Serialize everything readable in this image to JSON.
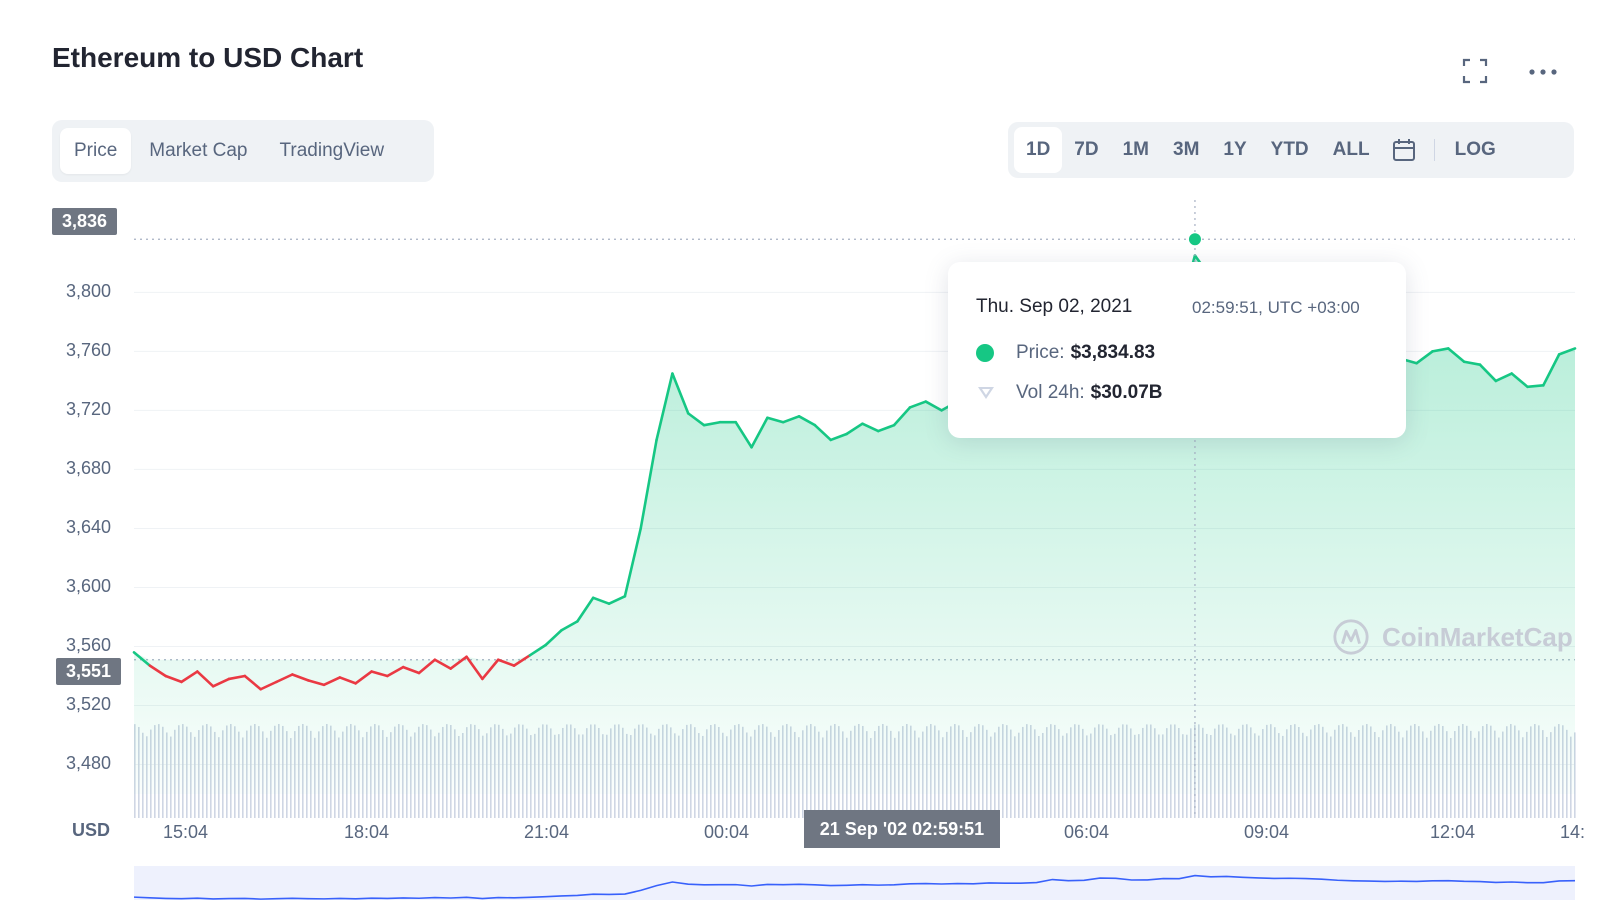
{
  "header": {
    "title": "Ethereum to USD Chart"
  },
  "icons": {
    "expand": "expand-icon",
    "more": "more-icon",
    "calendar": "calendar-icon"
  },
  "tabs": [
    {
      "label": "Price",
      "active": true
    },
    {
      "label": "Market Cap",
      "active": false
    },
    {
      "label": "TradingView",
      "active": false
    }
  ],
  "ranges": [
    "1D",
    "7D",
    "1M",
    "3M",
    "1Y",
    "YTD",
    "ALL"
  ],
  "active_range": "1D",
  "log_label": "LOG",
  "tooltip": {
    "date": "Thu. Sep 02, 2021",
    "time": "02:59:51, UTC +03:00",
    "price_label": "Price:",
    "price_value": "$3,834.83",
    "vol_label": "Vol 24h:",
    "vol_value": "$30.07B"
  },
  "price_tags": {
    "high": "3,836",
    "low": "3,551"
  },
  "cursor_time": "21 Sep '02 02:59:51",
  "currency_label": "USD",
  "watermark": "CoinMarketCap",
  "colors": {
    "up": "#16c784",
    "down": "#ea3943",
    "accent": "#3861fb",
    "tag": "#6f7682"
  },
  "chart_data": {
    "type": "area",
    "y_ticks": [
      "3,800",
      "3,760",
      "3,720",
      "3,680",
      "3,640",
      "3,600",
      "3,560",
      "3,520",
      "3,480"
    ],
    "x_ticks": [
      "15:04",
      "18:04",
      "21:04",
      "00:04",
      "06:04",
      "09:04",
      "12:04",
      "14:"
    ],
    "ylim": [
      3460,
      3845
    ],
    "baseline": 3551,
    "high": 3836,
    "y": [
      3556,
      3547,
      3540,
      3536,
      3543,
      3533,
      3538,
      3540,
      3531,
      3536,
      3541,
      3537,
      3534,
      3539,
      3535,
      3543,
      3540,
      3546,
      3542,
      3551,
      3545,
      3553,
      3538,
      3551,
      3547,
      3554,
      3561,
      3571,
      3577,
      3593,
      3589,
      3594,
      3640,
      3700,
      3745,
      3718,
      3710,
      3712,
      3712,
      3695,
      3715,
      3712,
      3716,
      3710,
      3700,
      3704,
      3711,
      3706,
      3710,
      3722,
      3726,
      3720,
      3726,
      3722,
      3733,
      3730,
      3730,
      3738,
      3776,
      3761,
      3766,
      3794,
      3791,
      3770,
      3771,
      3788,
      3786,
      3825,
      3810,
      3815,
      3804,
      3796,
      3790,
      3792,
      3788,
      3780,
      3767,
      3760,
      3757,
      3752,
      3755,
      3752,
      3760,
      3762,
      3753,
      3751,
      3740,
      3745,
      3736,
      3737,
      3758,
      3762
    ],
    "grid": true
  }
}
